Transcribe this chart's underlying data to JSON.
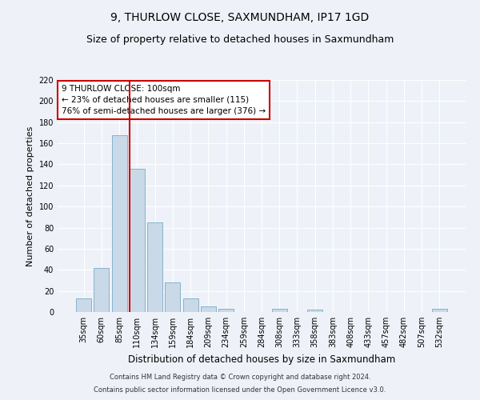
{
  "title": "9, THURLOW CLOSE, SAXMUNDHAM, IP17 1GD",
  "subtitle": "Size of property relative to detached houses in Saxmundham",
  "xlabel": "Distribution of detached houses by size in Saxmundham",
  "ylabel": "Number of detached properties",
  "categories": [
    "35sqm",
    "60sqm",
    "85sqm",
    "110sqm",
    "134sqm",
    "159sqm",
    "184sqm",
    "209sqm",
    "234sqm",
    "259sqm",
    "284sqm",
    "308sqm",
    "333sqm",
    "358sqm",
    "383sqm",
    "408sqm",
    "433sqm",
    "457sqm",
    "482sqm",
    "507sqm",
    "532sqm"
  ],
  "values": [
    13,
    42,
    168,
    136,
    85,
    28,
    13,
    5,
    3,
    0,
    0,
    3,
    0,
    2,
    0,
    0,
    0,
    0,
    0,
    0,
    3
  ],
  "bar_color": "#c9d9e8",
  "bar_edge_color": "#7aaac8",
  "vline_color": "#cc0000",
  "vline_pos": 2.575,
  "annotation_text": "9 THURLOW CLOSE: 100sqm\n← 23% of detached houses are smaller (115)\n76% of semi-detached houses are larger (376) →",
  "annotation_box_color": "#ffffff",
  "annotation_box_edge": "#cc0000",
  "ylim": [
    0,
    220
  ],
  "yticks": [
    0,
    20,
    40,
    60,
    80,
    100,
    120,
    140,
    160,
    180,
    200,
    220
  ],
  "footnote1": "Contains HM Land Registry data © Crown copyright and database right 2024.",
  "footnote2": "Contains public sector information licensed under the Open Government Licence v3.0.",
  "bg_color": "#eef2f8",
  "grid_color": "#ffffff",
  "title_fontsize": 10,
  "subtitle_fontsize": 9,
  "tick_fontsize": 7,
  "xlabel_fontsize": 8.5,
  "ylabel_fontsize": 8,
  "annot_fontsize": 7.5,
  "footnote_fontsize": 6
}
